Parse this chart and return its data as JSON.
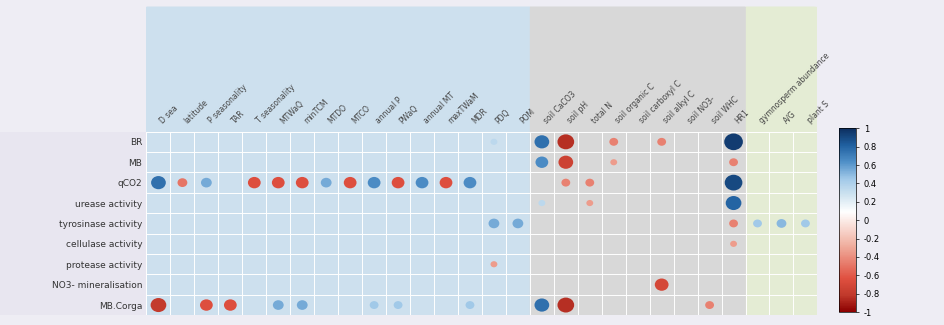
{
  "row_labels": [
    "BR",
    "MB",
    "qCO2",
    "urease activity",
    "tyrosinase activity",
    "cellulase activity",
    "protease activity",
    "NO3- mineralisation",
    "MB.Corga"
  ],
  "col_labels": [
    "D sea",
    "latitude",
    "P seasonality",
    "TAR",
    "T seasonality",
    "MTWaQ",
    "minTCM",
    "MTDO",
    "MTCO",
    "annual P",
    "PWaQ",
    "annual MT",
    "maxTWaM",
    "MDR",
    "PDQ",
    "POM",
    "soil CaCO3",
    "soil pH",
    "total N",
    "soil organic C",
    "soil carboxyl C",
    "soil alkyl C",
    "soil NO3-",
    "soil WHC",
    "HR1",
    "gymnosperm abundance",
    "A/G",
    "plant S"
  ],
  "col_group_ranges": {
    "climate": [
      0,
      15
    ],
    "soil": [
      16,
      24
    ],
    "vegetation": [
      25,
      27
    ]
  },
  "group_colors": {
    "climate": "#cde0ee",
    "soil": "#d8d8d8",
    "vegetation": "#e4ecd4"
  },
  "background_color": "#eeedf4",
  "data": {
    "BR": [
      0,
      0,
      0,
      0,
      0,
      0,
      0,
      0,
      0,
      0,
      0,
      0,
      0,
      0,
      0.35,
      0,
      0.75,
      0.85,
      0,
      0.45,
      0,
      0.45,
      0,
      0,
      0.95,
      0,
      0,
      0
    ],
    "MB": [
      0,
      0,
      0,
      0,
      0,
      0,
      0,
      0,
      0,
      0,
      0,
      0,
      0,
      0,
      0,
      0,
      0.65,
      0.75,
      0,
      0.35,
      0,
      0,
      0,
      0,
      0.45,
      0,
      0,
      0
    ],
    "qCO2": [
      0.75,
      0.5,
      0.55,
      0,
      0.65,
      0.65,
      0.65,
      0.55,
      0.65,
      0.65,
      0.65,
      0.65,
      0.65,
      0.65,
      0,
      0,
      0,
      0.45,
      0.45,
      0,
      0,
      0,
      0,
      0,
      0.9,
      0,
      0,
      0
    ],
    "urease activity": [
      0,
      0,
      0,
      0,
      0,
      0,
      0,
      0,
      0,
      0,
      0,
      0,
      0,
      0,
      0,
      0,
      0.35,
      0,
      0.35,
      0,
      0,
      0,
      0,
      0,
      0.8,
      0,
      0,
      0
    ],
    "tyrosinase activity": [
      0,
      0,
      0,
      0,
      0,
      0,
      0,
      0,
      0,
      0,
      0,
      0,
      0,
      0,
      0.55,
      0.55,
      0,
      0,
      0,
      0,
      0,
      0,
      0,
      0,
      0.45,
      0.45,
      0.5,
      0.45
    ],
    "cellulase activity": [
      0,
      0,
      0,
      0,
      0,
      0,
      0,
      0,
      0,
      0,
      0,
      0,
      0,
      0,
      0,
      0,
      0,
      0,
      0,
      0,
      0,
      0,
      0,
      0,
      0.35,
      0,
      0,
      0
    ],
    "protease activity": [
      0,
      0,
      0,
      0,
      0,
      0,
      0,
      0,
      0,
      0,
      0,
      0,
      0,
      0,
      0.35,
      0,
      0,
      0,
      0,
      0,
      0,
      0,
      0,
      0,
      0,
      0,
      0,
      0
    ],
    "NO3- mineralisation": [
      0,
      0,
      0,
      0,
      0,
      0,
      0,
      0,
      0,
      0,
      0,
      0,
      0,
      0,
      0,
      0,
      0,
      0,
      0,
      0,
      0,
      0.7,
      0,
      0,
      0,
      0,
      0,
      0
    ],
    "MB.Corga": [
      0.8,
      0,
      0.65,
      0.65,
      0,
      0.55,
      0.55,
      0,
      0,
      0.45,
      0.45,
      0,
      0,
      0.45,
      0,
      0,
      0.75,
      0.85,
      0,
      0,
      0,
      0,
      0,
      0.45,
      0,
      0,
      0,
      0
    ]
  },
  "sign": {
    "BR": [
      0,
      0,
      0,
      0,
      0,
      0,
      0,
      0,
      0,
      0,
      0,
      0,
      0,
      0,
      1,
      0,
      1,
      -1,
      0,
      -1,
      0,
      -1,
      0,
      0,
      1,
      0,
      0,
      0
    ],
    "MB": [
      0,
      0,
      0,
      0,
      0,
      0,
      0,
      0,
      0,
      0,
      0,
      0,
      0,
      0,
      0,
      0,
      1,
      -1,
      0,
      -1,
      0,
      0,
      0,
      0,
      -1,
      0,
      0,
      0
    ],
    "qCO2": [
      1,
      -1,
      1,
      0,
      -1,
      -1,
      -1,
      1,
      -1,
      1,
      -1,
      1,
      -1,
      1,
      0,
      0,
      0,
      -1,
      -1,
      0,
      0,
      0,
      0,
      0,
      1,
      0,
      0,
      0
    ],
    "urease activity": [
      0,
      0,
      0,
      0,
      0,
      0,
      0,
      0,
      0,
      0,
      0,
      0,
      0,
      0,
      0,
      0,
      1,
      0,
      -1,
      0,
      0,
      0,
      0,
      0,
      1,
      0,
      0,
      0
    ],
    "tyrosinase activity": [
      0,
      0,
      0,
      0,
      0,
      0,
      0,
      0,
      0,
      0,
      0,
      0,
      0,
      0,
      1,
      1,
      0,
      0,
      0,
      0,
      0,
      0,
      0,
      0,
      -1,
      1,
      1,
      1
    ],
    "cellulase activity": [
      0,
      0,
      0,
      0,
      0,
      0,
      0,
      0,
      0,
      0,
      0,
      0,
      0,
      0,
      0,
      0,
      0,
      0,
      0,
      0,
      0,
      0,
      0,
      0,
      -1,
      0,
      0,
      0
    ],
    "protease activity": [
      0,
      0,
      0,
      0,
      0,
      0,
      0,
      0,
      0,
      0,
      0,
      0,
      0,
      0,
      -1,
      0,
      0,
      0,
      0,
      0,
      0,
      0,
      0,
      0,
      0,
      0,
      0,
      0
    ],
    "NO3- mineralisation": [
      0,
      0,
      0,
      0,
      0,
      0,
      0,
      0,
      0,
      0,
      0,
      0,
      0,
      0,
      0,
      0,
      0,
      0,
      0,
      0,
      0,
      -1,
      0,
      0,
      0,
      0,
      0,
      0
    ],
    "MB.Corga": [
      -1,
      0,
      -1,
      -1,
      0,
      1,
      1,
      0,
      0,
      1,
      1,
      0,
      0,
      1,
      0,
      0,
      1,
      -1,
      0,
      0,
      0,
      0,
      0,
      -1,
      0,
      0,
      0,
      0
    ]
  },
  "cmap_colors": [
    "#8b0000",
    "#c0392b",
    "#e05040",
    "#e88070",
    "#f0b0a0",
    "#f8d8d0",
    "#ffffff",
    "#d0e4f0",
    "#a0c8e8",
    "#5090c8",
    "#2060a0",
    "#0d3060"
  ],
  "cbar_ticks": [
    1,
    0.8,
    0.6,
    0.4,
    0.2,
    0,
    -0.2,
    -0.4,
    -0.6,
    -0.8,
    -1
  ]
}
